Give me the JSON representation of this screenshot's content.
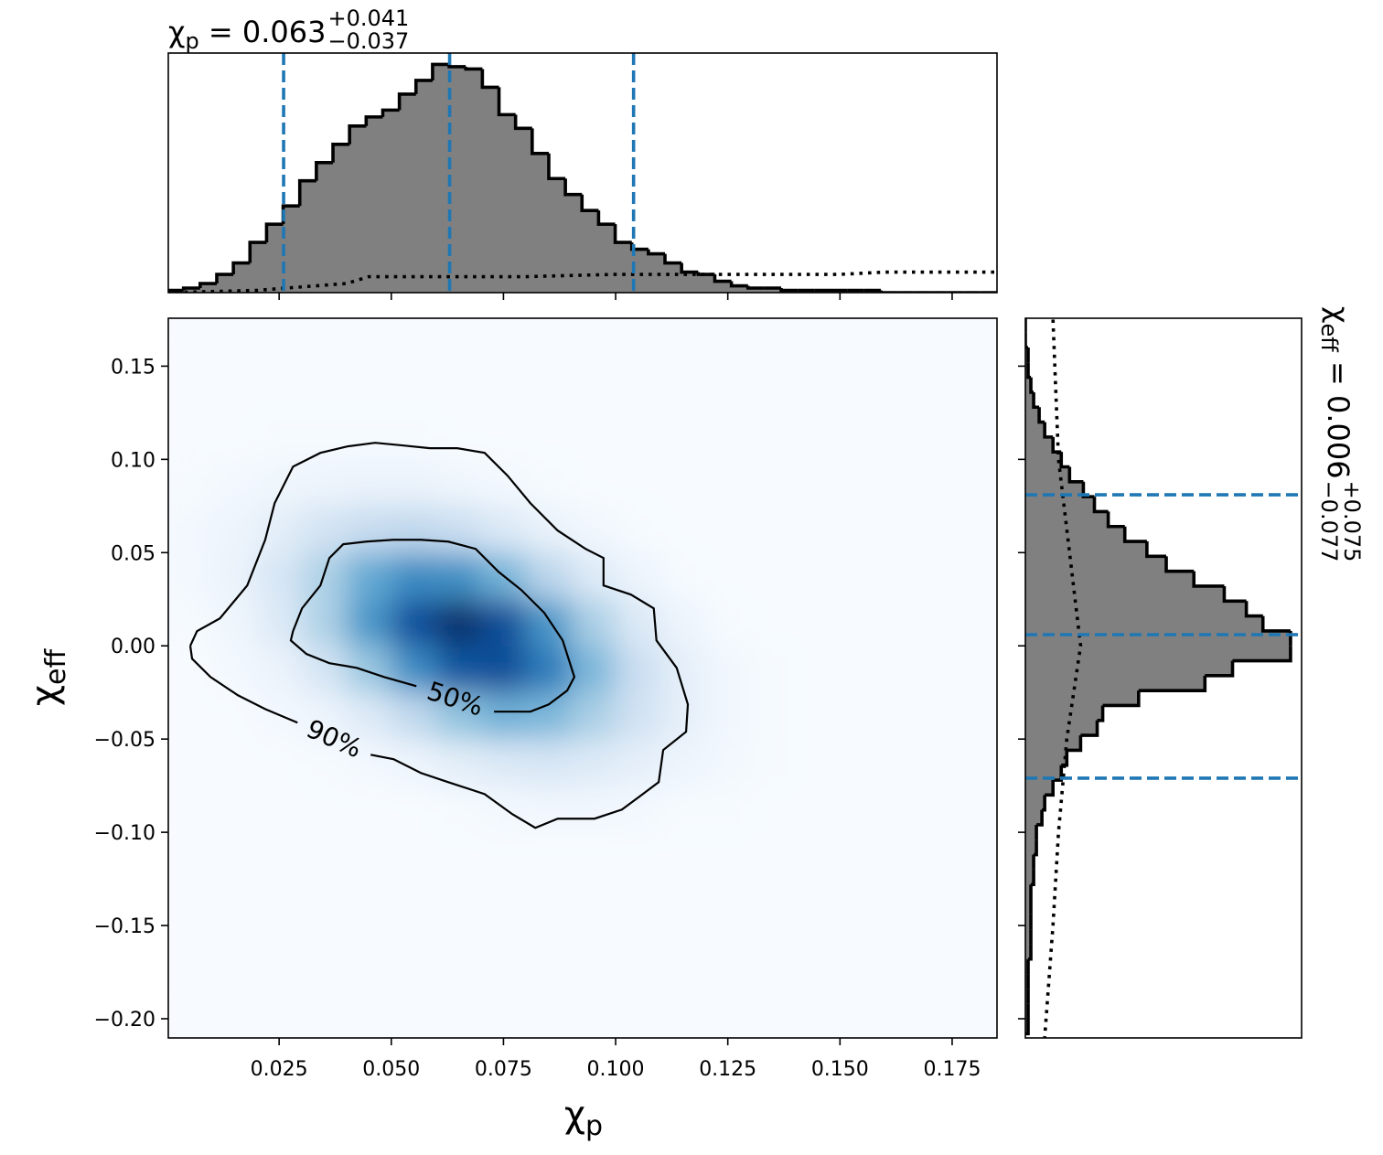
{
  "chart_data": {
    "type": "corner",
    "x_label": {
      "symbol": "χ",
      "sub": "p"
    },
    "y_label": {
      "symbol": "χ",
      "sub": "eff"
    },
    "xlim": [
      0.0003,
      0.185
    ],
    "ylim": [
      -0.2103,
      0.1757
    ],
    "xticks": [
      0.025,
      {
        "value": 0.05,
        "label": "0.050"
      },
      0.075,
      {
        "value": 0.1,
        "label": "0.100"
      },
      0.125,
      {
        "value": 0.15,
        "label": "0.150"
      },
      0.175
    ],
    "yticks": [
      0.15,
      {
        "value": 0.1,
        "label": "0.10"
      },
      0.05,
      {
        "value": 0,
        "label": "0.00"
      },
      {
        "value": -0.05,
        "label": "−0.05"
      },
      {
        "value": -0.1,
        "label": "−0.10"
      },
      {
        "value": -0.15,
        "label": "−0.15"
      },
      {
        "value": -0.2,
        "label": "−0.20"
      }
    ],
    "density": {
      "colormap": [
        "#f7fbff",
        "#deebf7",
        "#c6dbef",
        "#9ecae1",
        "#6baed6",
        "#4292c6",
        "#2171b5",
        "#08519c",
        "#08306b"
      ],
      "x_edges": [
        0,
        0.01,
        0.02,
        0.03,
        0.04,
        0.05,
        0.06,
        0.07,
        0.08,
        0.09,
        0.1,
        0.11,
        0.12,
        0.13,
        0.14,
        0.15,
        0.16,
        0.17,
        0.18
      ],
      "y_edges": [
        -0.2,
        -0.175,
        -0.15,
        -0.125,
        -0.1,
        -0.075,
        -0.05,
        -0.025,
        0,
        0.025,
        0.05,
        0.075,
        0.1,
        0.125,
        0.15,
        0.175
      ],
      "values": [
        [
          0,
          0,
          0,
          0,
          0,
          0,
          0,
          0,
          0,
          0,
          0,
          0,
          0,
          0,
          0,
          0,
          0,
          0
        ],
        [
          0,
          0,
          0,
          0,
          0,
          0,
          0,
          0,
          0,
          0,
          0,
          0,
          0,
          0,
          0,
          0,
          0,
          0
        ],
        [
          0,
          0,
          0,
          0,
          0,
          0,
          0,
          0,
          0,
          0,
          0,
          0,
          0,
          0,
          0,
          0,
          0,
          0
        ],
        [
          0,
          0,
          0,
          0,
          0,
          0,
          0,
          0,
          0,
          0,
          0,
          0,
          0,
          0,
          0,
          0,
          0,
          0
        ],
        [
          0,
          0,
          0,
          0,
          0,
          0,
          1,
          2,
          3,
          3,
          2,
          1,
          1,
          0,
          0,
          0,
          0,
          0
        ],
        [
          0,
          0,
          0,
          1,
          2,
          5,
          10,
          14,
          16,
          13,
          9,
          5,
          2,
          1,
          0,
          0,
          0,
          0
        ],
        [
          0,
          0,
          2,
          5,
          13,
          26,
          40,
          48,
          45,
          33,
          19,
          9,
          3,
          1,
          0,
          0,
          0,
          0
        ],
        [
          0,
          2,
          6,
          17,
          38,
          63,
          84,
          87,
          70,
          45,
          22,
          9,
          3,
          1,
          0,
          0,
          0,
          0
        ],
        [
          1,
          4,
          13,
          32,
          59,
          86,
          98,
          87,
          60,
          33,
          14,
          5,
          1,
          0,
          0,
          0,
          0,
          0
        ],
        [
          2,
          6,
          16,
          32,
          51,
          64,
          62,
          47,
          28,
          13,
          5,
          1,
          0,
          0,
          0,
          0,
          0,
          0
        ],
        [
          2,
          5,
          10,
          18,
          24,
          26,
          22,
          14,
          7,
          3,
          1,
          0,
          0,
          0,
          0,
          0,
          0,
          0
        ],
        [
          1,
          2,
          4,
          5,
          6,
          6,
          4,
          2,
          1,
          0,
          0,
          0,
          0,
          0,
          0,
          0,
          0,
          0
        ],
        [
          0,
          0,
          1,
          1,
          1,
          1,
          0,
          0,
          0,
          0,
          0,
          0,
          0,
          0,
          0,
          0,
          0,
          0
        ],
        [
          0,
          0,
          0,
          0,
          0,
          0,
          0,
          0,
          0,
          0,
          0,
          0,
          0,
          0,
          0,
          0,
          0,
          0
        ],
        [
          0,
          0,
          0,
          0,
          0,
          0,
          0,
          0,
          0,
          0,
          0,
          0,
          0,
          0,
          0,
          0,
          0,
          0
        ]
      ]
    },
    "contours": [
      {
        "label": "50%",
        "x": [
          0.0281,
          0.0301,
          0.0342,
          0.0362,
          0.0393,
          0.0444,
          0.0505,
          0.0566,
          0.0627,
          0.0688,
          0.0739,
          0.079,
          0.0841,
          0.0882,
          0.0908,
          0.0892,
          0.0851,
          0.081,
          0.0729,
          null,
          0.0556,
          0.0484,
          0.0423,
          0.0362,
          0.0311,
          0.0276,
          0.0281
        ],
        "y": [
          0.0079,
          0.0201,
          0.0324,
          0.0471,
          0.0545,
          0.0559,
          0.0569,
          0.0569,
          0.0559,
          0.052,
          0.0397,
          0.0299,
          0.0177,
          0.0029,
          -0.0167,
          -0.024,
          -0.0314,
          -0.0353,
          -0.0353,
          null,
          -0.0216,
          -0.0167,
          -0.0118,
          -0.0093,
          -0.0044,
          0.0029,
          0.0079
        ]
      },
      {
        "label": "90%",
        "x": [
          0.0052,
          0.0067,
          0.0118,
          0.0179,
          0.0219,
          0.024,
          0.0281,
          0.0342,
          0.0403,
          0.0464,
          0.0525,
          0.0586,
          0.0647,
          0.0708,
          0.0759,
          0.081,
          0.0871,
          0.0933,
          0.0973,
          0.0973,
          0.1034,
          0.1085,
          0.1091,
          0.1136,
          0.1161,
          0.1157,
          0.1106,
          0.1096,
          0.1055,
          0.1014,
          0.0953,
          0.0871,
          0.0821,
          0.077,
          0.0708,
          0.0627,
          0.0566,
          0.0505,
          0.0454,
          null,
          0.0291,
          0.0219,
          0.0158,
          0.0097,
          0.0056,
          0.0052
        ],
        "y": [
          0,
          0.0079,
          0.0147,
          0.0324,
          0.0569,
          0.0765,
          0.0961,
          0.1035,
          0.107,
          0.1089,
          0.1075,
          0.106,
          0.106,
          0.1035,
          0.0913,
          0.0765,
          0.0618,
          0.052,
          0.0471,
          0.0324,
          0.0275,
          0.0201,
          0.0029,
          -0.0118,
          -0.0314,
          -0.0461,
          -0.0559,
          -0.0731,
          -0.0805,
          -0.0878,
          -0.0927,
          -0.0927,
          -0.0976,
          -0.0903,
          -0.0795,
          -0.0731,
          -0.0682,
          -0.0608,
          -0.0584,
          null,
          -0.0412,
          -0.0339,
          -0.0265,
          -0.0167,
          -0.0069,
          0
        ]
      }
    ],
    "top": {
      "type": "histogram",
      "title": {
        "symbol": "χ",
        "sub": "p",
        "text": " = 0.063",
        "plus": "+0.041",
        "minus": "−0.037"
      },
      "bins": [
        0,
        0.0037,
        0.0074,
        0.0111,
        0.0148,
        0.0185,
        0.0222,
        0.0259,
        0.0296,
        0.0333,
        0.037,
        0.0407,
        0.0444,
        0.0481,
        0.0518,
        0.0555,
        0.0592,
        0.0629,
        0.0666,
        0.0703,
        0.074,
        0.0777,
        0.0814,
        0.0851,
        0.0888,
        0.0925,
        0.0962,
        0.0999,
        0.1036,
        0.1073,
        0.111,
        0.1147,
        0.1184,
        0.1221,
        0.1258,
        0.1295,
        0.1332,
        0.1369,
        0.1406,
        0.1443,
        0.148,
        0.1517,
        0.1554,
        0.1591,
        0.1628,
        0.1665,
        0.1702,
        0.1739,
        0.1776,
        0.1813,
        0.185
      ],
      "counts": [
        1,
        2,
        4,
        8,
        13,
        22,
        30,
        38,
        49,
        57,
        65,
        73,
        77,
        80,
        87,
        93,
        100,
        99,
        98,
        90,
        78,
        72,
        61,
        50,
        43,
        36,
        30,
        22,
        19,
        17,
        13,
        9,
        8,
        5,
        3,
        2,
        2,
        1,
        1,
        1,
        1,
        1,
        1,
        0,
        0,
        0,
        0,
        0,
        0,
        0
      ],
      "ylim": [
        0,
        105
      ],
      "fill": "#808080",
      "edge": "#000000",
      "prior": {
        "x": [
          0,
          0.02,
          0.04,
          0.045,
          0.08,
          0.1,
          0.12,
          0.15,
          0.16,
          0.185
        ],
        "y": [
          0,
          1,
          4,
          7,
          7,
          8,
          8,
          8,
          9,
          9
        ]
      },
      "quantiles": [
        0.026,
        0.063,
        0.104
      ],
      "quantile_color": "#1f77b4"
    },
    "right": {
      "type": "histogram",
      "orientation": "horizontal",
      "title": {
        "symbol": "χ",
        "sub": "eff",
        "text": " = 0.006",
        "plus": "+0.075",
        "minus": "−0.077"
      },
      "bins": [
        -0.208,
        -0.2,
        -0.192,
        -0.184,
        -0.176,
        -0.168,
        -0.16,
        -0.152,
        -0.144,
        -0.136,
        -0.128,
        -0.12,
        -0.112,
        -0.104,
        -0.096,
        -0.088,
        -0.08,
        -0.072,
        -0.064,
        -0.056,
        -0.048,
        -0.04,
        -0.032,
        -0.024,
        -0.016,
        -0.008,
        0,
        0.008,
        0.016,
        0.024,
        0.032,
        0.04,
        0.048,
        0.056,
        0.064,
        0.072,
        0.08,
        0.088,
        0.096,
        0.104,
        0.112,
        0.12,
        0.128,
        0.136,
        0.144,
        0.152,
        0.16,
        0.168,
        0.176
      ],
      "counts": [
        1,
        1,
        1,
        1,
        1,
        2,
        2,
        2,
        2,
        2,
        3,
        3,
        4,
        4,
        6,
        7,
        10,
        13,
        15,
        20,
        26,
        28,
        41,
        65,
        75,
        96,
        96,
        86,
        80,
        72,
        61,
        51,
        44,
        36,
        30,
        25,
        21,
        16,
        13,
        10,
        7,
        5,
        3,
        2,
        1,
        1,
        0,
        0
      ],
      "xlim": [
        0,
        100
      ],
      "fill": "#808080",
      "edge": "#000000",
      "prior": {
        "x": [
          10,
          12,
          16,
          20,
          15,
          12,
          10,
          7
        ],
        "y": [
          0.175,
          0.1,
          0.05,
          0,
          -0.05,
          -0.1,
          -0.15,
          -0.21
        ]
      },
      "quantiles": [
        0.081,
        0.006,
        -0.071
      ],
      "quantile_color": "#1f77b4"
    }
  }
}
